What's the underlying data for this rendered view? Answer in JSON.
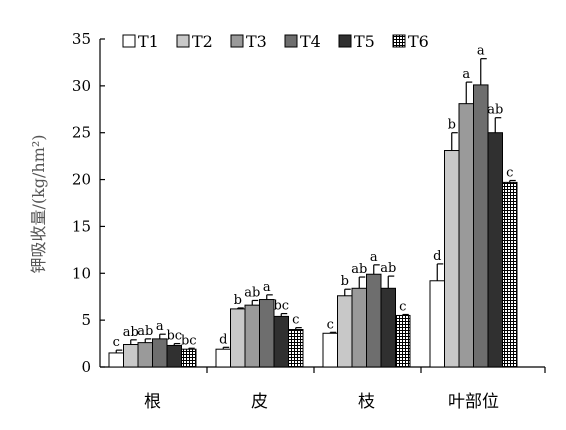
{
  "chart_data": {
    "type": "bar",
    "ylabel": "钾吸收量/(kg/hm²)",
    "xlabel": "",
    "ylim": [
      0,
      35
    ],
    "yticks": [
      0,
      5,
      10,
      15,
      20,
      25,
      30,
      35
    ],
    "categories": [
      "根",
      "皮",
      "枝",
      "叶部位"
    ],
    "legend_position": "top",
    "series": [
      {
        "name": "T1",
        "values": [
          1.5,
          1.9,
          3.6,
          9.2
        ],
        "errors": [
          0.3,
          0.2,
          0.1,
          1.8
        ],
        "letters": [
          "c",
          "d",
          "c",
          "d"
        ],
        "fill": "#ffffff",
        "pattern": "none"
      },
      {
        "name": "T2",
        "values": [
          2.4,
          6.2,
          7.6,
          23.1
        ],
        "errors": [
          0.5,
          0.1,
          0.7,
          1.9
        ],
        "letters": [
          "ab",
          "b",
          "b",
          "b"
        ],
        "fill": "#c8c8c8",
        "pattern": "none"
      },
      {
        "name": "T3",
        "values": [
          2.6,
          6.6,
          8.4,
          28.1
        ],
        "errors": [
          0.4,
          0.5,
          1.2,
          2.3
        ],
        "letters": [
          "ab",
          "ab",
          "ab",
          "a"
        ],
        "fill": "#9a9a9a",
        "pattern": "none"
      },
      {
        "name": "T4",
        "values": [
          3.0,
          7.2,
          9.9,
          30.1
        ],
        "errors": [
          0.5,
          0.5,
          1.0,
          2.8
        ],
        "letters": [
          "a",
          "a",
          "a",
          "a"
        ],
        "fill": "#6e6e6e",
        "pattern": "none"
      },
      {
        "name": "T5",
        "values": [
          2.3,
          5.4,
          8.4,
          25.0
        ],
        "errors": [
          0.2,
          0.3,
          1.3,
          1.6
        ],
        "letters": [
          "bc",
          "bc",
          "ab",
          "ab"
        ],
        "fill": "#303030",
        "pattern": "none"
      },
      {
        "name": "T6",
        "values": [
          1.9,
          4.0,
          5.5,
          19.7
        ],
        "errors": [
          0.1,
          0.2,
          0.1,
          0.2
        ],
        "letters": [
          "bc",
          "c",
          "c",
          "c"
        ],
        "fill": "#ffffff",
        "pattern": "grid"
      }
    ]
  }
}
